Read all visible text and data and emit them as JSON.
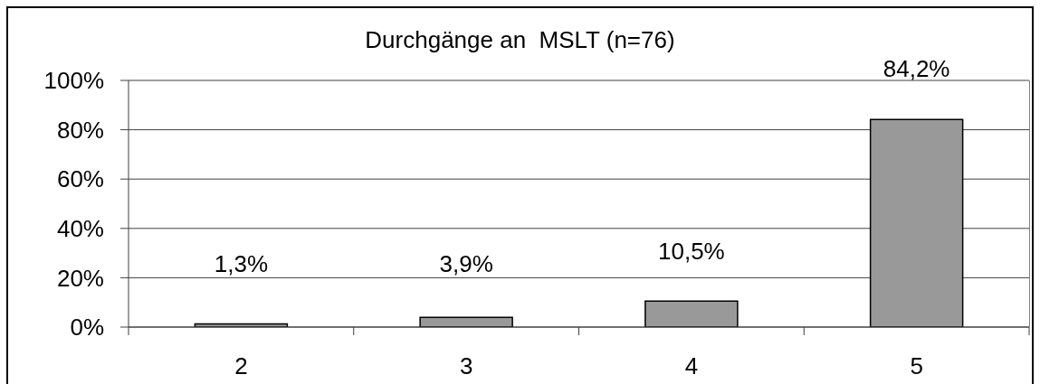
{
  "chart_data": {
    "type": "bar",
    "title": "Durchgänge an  MSLT (n=76)",
    "categories": [
      "2",
      "3",
      "4",
      "5"
    ],
    "values": [
      1.3,
      3.9,
      10.5,
      84.2
    ],
    "color": "#999999",
    "value_labels": [
      "1,3%",
      "3,9%",
      "10,5%",
      "84,2%"
    ],
    "ylim": [
      0,
      100
    ],
    "yticks": [
      {
        "value": 0,
        "label": "0%"
      },
      {
        "value": 20,
        "label": "20%"
      },
      {
        "value": 40,
        "label": "40%"
      },
      {
        "value": 60,
        "label": "60%"
      },
      {
        "value": 80,
        "label": "80%"
      },
      {
        "value": 100,
        "label": "100%"
      }
    ],
    "grid": "y"
  }
}
